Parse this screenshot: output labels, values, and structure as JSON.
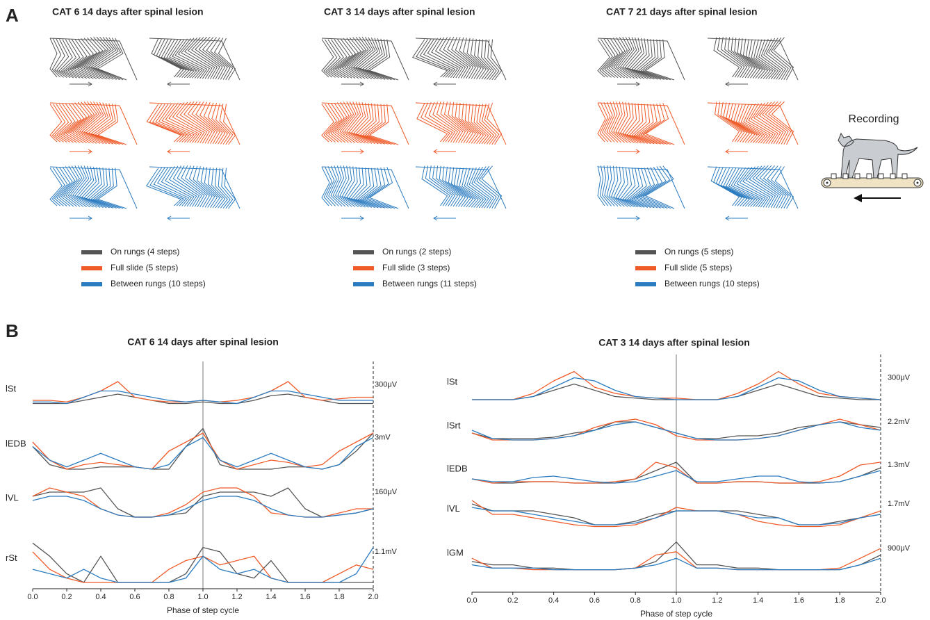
{
  "figure": {
    "panel_a_label": "A",
    "panel_b_label": "B",
    "recording_label": "Recording",
    "panel_a": [
      {
        "title": "CAT 6 14 days after spinal lesion",
        "legend": [
          {
            "name": "On rungs (4 steps)",
            "color": "#555555"
          },
          {
            "name": "Full slide (5 steps)",
            "color": "#f05a28"
          },
          {
            "name": "Between rungs (10 steps)",
            "color": "#2a7bc0"
          }
        ]
      },
      {
        "title": "CAT 3 14 days after spinal lesion",
        "legend": [
          {
            "name": "On rungs (2 steps)",
            "color": "#555555"
          },
          {
            "name": "Full slide (3 steps)",
            "color": "#f05a28"
          },
          {
            "name": "Between rungs (11 steps)",
            "color": "#2a7bc0"
          }
        ]
      },
      {
        "title": "CAT 7 21 days after spinal lesion",
        "legend": [
          {
            "name": "On rungs (5 steps)",
            "color": "#555555"
          },
          {
            "name": "Full slide (5 steps)",
            "color": "#f05a28"
          },
          {
            "name": "Between rungs (10 steps)",
            "color": "#2a7bc0"
          }
        ]
      }
    ]
  },
  "chart_data": [
    {
      "type": "line",
      "title": "CAT 6 14 days after spinal lesion",
      "x_label": "Phase of step cycle",
      "x": [
        0,
        0.1,
        0.2,
        0.3,
        0.4,
        0.5,
        0.6,
        0.7,
        0.8,
        0.9,
        1,
        1.1,
        1.2,
        1.3,
        1.4,
        1.5,
        1.6,
        1.7,
        1.8,
        1.9,
        2
      ],
      "xlim": [
        0,
        2
      ],
      "xticks": [
        {
          "value": 0,
          "label": "0.0"
        },
        0.2,
        0.4,
        0.6,
        0.8,
        {
          "value": 1,
          "label": "1.0"
        },
        1.2,
        1.4,
        1.6,
        1.8,
        {
          "value": 2,
          "label": "2.0"
        }
      ],
      "muscles": [
        {
          "name": "lSt",
          "scale": "300μV",
          "series": [
            {
              "color": "#555555",
              "values": [
                0.1,
                0.1,
                0.1,
                0.2,
                0.3,
                0.4,
                0.3,
                0.2,
                0.1,
                0.1,
                0.15,
                0.1,
                0.1,
                0.2,
                0.35,
                0.4,
                0.3,
                0.2,
                0.1,
                0.1,
                0.1
              ]
            },
            {
              "color": "#f05a28",
              "values": [
                0.2,
                0.2,
                0.15,
                0.3,
                0.5,
                0.8,
                0.3,
                0.2,
                0.15,
                0.15,
                0.2,
                0.15,
                0.2,
                0.3,
                0.5,
                0.8,
                0.3,
                0.2,
                0.25,
                0.3,
                0.3
              ]
            },
            {
              "color": "#2a7bc0",
              "values": [
                0.15,
                0.15,
                0.1,
                0.3,
                0.5,
                0.5,
                0.4,
                0.3,
                0.2,
                0.15,
                0.2,
                0.15,
                0.1,
                0.3,
                0.5,
                0.5,
                0.4,
                0.3,
                0.2,
                0.2,
                0.2
              ]
            }
          ]
        },
        {
          "name": "lEDB",
          "scale": "3mV",
          "series": [
            {
              "color": "#555555",
              "values": [
                0.5,
                0.1,
                0,
                0,
                0.05,
                0.05,
                0.05,
                0,
                0,
                0.5,
                0.9,
                0.1,
                0,
                0,
                0,
                0.05,
                0.05,
                0,
                0.1,
                0.4,
                0.8
              ]
            },
            {
              "color": "#f05a28",
              "values": [
                0.6,
                0.2,
                0,
                0.1,
                0.15,
                0.1,
                0.05,
                0,
                0.4,
                0.6,
                0.8,
                0.2,
                0,
                0.1,
                0.2,
                0.15,
                0.05,
                0.1,
                0.4,
                0.6,
                0.8
              ]
            },
            {
              "color": "#2a7bc0",
              "values": [
                0.5,
                0.2,
                0.05,
                0.2,
                0.35,
                0.2,
                0.05,
                0,
                0.1,
                0.5,
                0.7,
                0.2,
                0.05,
                0.2,
                0.35,
                0.2,
                0.05,
                0,
                0.1,
                0.5,
                0.7
              ]
            }
          ]
        },
        {
          "name": "lVL",
          "scale": "160μV",
          "series": [
            {
              "color": "#555555",
              "values": [
                0.6,
                0.7,
                0.7,
                0.7,
                0.8,
                0.3,
                0.1,
                0.1,
                0.15,
                0.2,
                0.6,
                0.7,
                0.7,
                0.7,
                0.6,
                0.8,
                0.3,
                0.1,
                0.15,
                0.2,
                0.3
              ]
            },
            {
              "color": "#f05a28",
              "values": [
                0.6,
                0.8,
                0.7,
                0.6,
                0.3,
                0.15,
                0.1,
                0.1,
                0.2,
                0.4,
                0.7,
                0.8,
                0.8,
                0.6,
                0.2,
                0.15,
                0.1,
                0.1,
                0.2,
                0.3,
                0.3
              ]
            },
            {
              "color": "#2a7bc0",
              "values": [
                0.5,
                0.6,
                0.6,
                0.5,
                0.3,
                0.15,
                0.1,
                0.1,
                0.15,
                0.3,
                0.5,
                0.6,
                0.6,
                0.5,
                0.3,
                0.15,
                0.1,
                0.1,
                0.15,
                0.2,
                0.3
              ]
            }
          ]
        },
        {
          "name": "rSt",
          "scale": "1.1mV",
          "series": [
            {
              "color": "#555555",
              "values": [
                0.9,
                0.6,
                0.2,
                0,
                0.6,
                0,
                0,
                0,
                0,
                0.2,
                0.8,
                0.7,
                0.2,
                0.1,
                0.5,
                0,
                0,
                0,
                0,
                0,
                0
              ]
            },
            {
              "color": "#f05a28",
              "values": [
                0.7,
                0.3,
                0.1,
                0,
                0,
                0,
                0,
                0,
                0.3,
                0.5,
                0.6,
                0.4,
                0.5,
                0.6,
                0.1,
                0,
                0,
                0,
                0.2,
                0.4,
                0.3
              ]
            },
            {
              "color": "#2a7bc0",
              "values": [
                0.3,
                0.2,
                0.1,
                0.3,
                0.1,
                0,
                0,
                0,
                0,
                0.1,
                0.6,
                0.3,
                0.2,
                0.3,
                0.1,
                0,
                0,
                0,
                0,
                0.2,
                0.8
              ]
            }
          ]
        }
      ]
    },
    {
      "type": "line",
      "title": "CAT 3 14 days after spinal lesion",
      "x_label": "Phase of step cycle",
      "x": [
        0,
        0.1,
        0.2,
        0.3,
        0.4,
        0.5,
        0.6,
        0.7,
        0.8,
        0.9,
        1,
        1.1,
        1.2,
        1.3,
        1.4,
        1.5,
        1.6,
        1.7,
        1.8,
        1.9,
        2
      ],
      "xlim": [
        0,
        2
      ],
      "xticks": [
        {
          "value": 0,
          "label": "0.0"
        },
        0.2,
        0.4,
        0.6,
        0.8,
        {
          "value": 1,
          "label": "1.0"
        },
        1.2,
        1.4,
        1.6,
        1.8,
        {
          "value": 2,
          "label": "2.0"
        }
      ],
      "muscles": [
        {
          "name": "lSt",
          "scale": "300μV",
          "series": [
            {
              "color": "#555555",
              "values": [
                0,
                0,
                0,
                0.1,
                0.3,
                0.5,
                0.3,
                0.1,
                0.05,
                0,
                0,
                0,
                0,
                0.1,
                0.3,
                0.5,
                0.3,
                0.1,
                0.05,
                0,
                0
              ]
            },
            {
              "color": "#f05a28",
              "values": [
                0,
                0,
                0,
                0.2,
                0.6,
                0.9,
                0.4,
                0.2,
                0.1,
                0.05,
                0.05,
                0,
                0,
                0.2,
                0.5,
                0.9,
                0.5,
                0.2,
                0.1,
                0.05,
                0
              ]
            },
            {
              "color": "#2a7bc0",
              "values": [
                0,
                0,
                0,
                0.1,
                0.4,
                0.7,
                0.6,
                0.3,
                0.1,
                0.05,
                0,
                0,
                0,
                0.1,
                0.4,
                0.7,
                0.6,
                0.3,
                0.1,
                0.05,
                0
              ]
            }
          ]
        },
        {
          "name": "lSrt",
          "scale": "2.2mV",
          "series": [
            {
              "color": "#555555",
              "values": [
                0.3,
                0.1,
                0.1,
                0.1,
                0.15,
                0.3,
                0.4,
                0.7,
                0.7,
                0.5,
                0.3,
                0.1,
                0.1,
                0.2,
                0.2,
                0.3,
                0.5,
                0.6,
                0.7,
                0.6,
                0.5
              ]
            },
            {
              "color": "#f05a28",
              "values": [
                0.3,
                0.05,
                0.05,
                0.05,
                0.1,
                0.2,
                0.5,
                0.7,
                0.8,
                0.6,
                0.2,
                0.05,
                0.05,
                0.05,
                0.1,
                0.2,
                0.4,
                0.6,
                0.8,
                0.6,
                0.4
              ]
            },
            {
              "color": "#2a7bc0",
              "values": [
                0.4,
                0.1,
                0.05,
                0.05,
                0.1,
                0.2,
                0.4,
                0.6,
                0.7,
                0.5,
                0.3,
                0.1,
                0.05,
                0.05,
                0.1,
                0.2,
                0.4,
                0.6,
                0.7,
                0.5,
                0.4
              ]
            }
          ]
        },
        {
          "name": "lEDB",
          "scale": "1.3mV",
          "series": [
            {
              "color": "#555555",
              "values": [
                0.2,
                0.05,
                0.05,
                0.1,
                0.1,
                0.05,
                0.05,
                0.05,
                0.2,
                0.5,
                0.8,
                0.05,
                0.05,
                0.1,
                0.1,
                0.05,
                0.05,
                0.05,
                0.1,
                0.3,
                0.6
              ]
            },
            {
              "color": "#f05a28",
              "values": [
                0.2,
                0.05,
                0.1,
                0.1,
                0.1,
                0.05,
                0.05,
                0.1,
                0.2,
                0.8,
                0.6,
                0.05,
                0.05,
                0.1,
                0.1,
                0.05,
                0.05,
                0.1,
                0.3,
                0.7,
                0.8
              ]
            },
            {
              "color": "#2a7bc0",
              "values": [
                0.2,
                0.1,
                0.1,
                0.25,
                0.3,
                0.2,
                0.1,
                0.05,
                0.1,
                0.3,
                0.5,
                0.1,
                0.1,
                0.2,
                0.3,
                0.3,
                0.1,
                0.05,
                0.1,
                0.3,
                0.5
              ]
            }
          ]
        },
        {
          "name": "lVL",
          "scale": "1.7mV",
          "series": [
            {
              "color": "#555555",
              "values": [
                0.7,
                0.5,
                0.5,
                0.5,
                0.4,
                0.3,
                0.1,
                0.1,
                0.2,
                0.4,
                0.5,
                0.5,
                0.5,
                0.5,
                0.4,
                0.3,
                0.1,
                0.1,
                0.2,
                0.3,
                0.4
              ]
            },
            {
              "color": "#f05a28",
              "values": [
                0.8,
                0.4,
                0.4,
                0.3,
                0.2,
                0.1,
                0.05,
                0.05,
                0.1,
                0.3,
                0.6,
                0.5,
                0.5,
                0.4,
                0.2,
                0.1,
                0.05,
                0.05,
                0.1,
                0.3,
                0.5
              ]
            },
            {
              "color": "#2a7bc0",
              "values": [
                0.6,
                0.5,
                0.5,
                0.4,
                0.3,
                0.2,
                0.1,
                0.1,
                0.15,
                0.3,
                0.5,
                0.5,
                0.5,
                0.4,
                0.3,
                0.3,
                0.1,
                0.1,
                0.15,
                0.3,
                0.4
              ]
            }
          ]
        },
        {
          "name": "lGM",
          "scale": "900μV",
          "series": [
            {
              "color": "#555555",
              "values": [
                0.3,
                0.2,
                0.2,
                0.1,
                0.1,
                0.05,
                0.05,
                0.05,
                0.1,
                0.3,
                0.9,
                0.2,
                0.2,
                0.1,
                0.1,
                0.05,
                0.05,
                0.05,
                0.05,
                0.2,
                0.5
              ]
            },
            {
              "color": "#f05a28",
              "values": [
                0.4,
                0.1,
                0.1,
                0.05,
                0.05,
                0.05,
                0.05,
                0.05,
                0.1,
                0.5,
                0.6,
                0.1,
                0.1,
                0.05,
                0.05,
                0.05,
                0.05,
                0.05,
                0.1,
                0.4,
                0.7
              ]
            },
            {
              "color": "#2a7bc0",
              "values": [
                0.2,
                0.1,
                0.1,
                0.1,
                0.05,
                0.05,
                0.05,
                0.05,
                0.1,
                0.2,
                0.4,
                0.1,
                0.1,
                0.05,
                0.05,
                0.05,
                0.05,
                0.05,
                0.05,
                0.2,
                0.4
              ]
            }
          ]
        }
      ]
    }
  ]
}
